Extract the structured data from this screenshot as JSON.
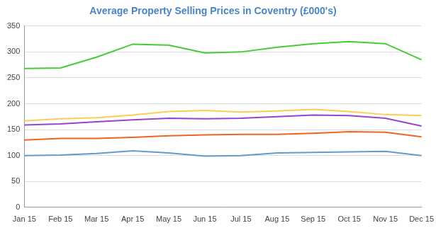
{
  "chart_data": {
    "type": "line",
    "title": "Average Property Selling Prices in Coventry (£000's)",
    "categories": [
      "Jan 15",
      "Feb 15",
      "Mar 15",
      "Apr 15",
      "May 15",
      "Jun 15",
      "Jul 15",
      "Aug 15",
      "Sep 15",
      "Oct 15",
      "Nov 15",
      "Dec 15"
    ],
    "series": [
      {
        "color": "#44cc33",
        "values": [
          268,
          269,
          290,
          315,
          313,
          298,
          300,
          309,
          316,
          320,
          316,
          285
        ]
      },
      {
        "color": "#ffcc55",
        "values": [
          167,
          171,
          173,
          178,
          185,
          187,
          184,
          186,
          189,
          185,
          179,
          177
        ]
      },
      {
        "color": "#9944cc",
        "values": [
          159,
          161,
          165,
          169,
          172,
          171,
          172,
          175,
          178,
          177,
          172,
          157
        ]
      },
      {
        "color": "#ee6622",
        "values": [
          130,
          133,
          133,
          135,
          138,
          140,
          141,
          141,
          143,
          146,
          145,
          136
        ]
      },
      {
        "color": "#6699cc",
        "values": [
          100,
          101,
          104,
          109,
          105,
          99,
          100,
          105,
          106,
          107,
          108,
          100
        ]
      }
    ],
    "ylim": [
      0,
      350
    ],
    "yticks": [
      0,
      50,
      100,
      150,
      200,
      250,
      300,
      350
    ],
    "grid": true
  }
}
